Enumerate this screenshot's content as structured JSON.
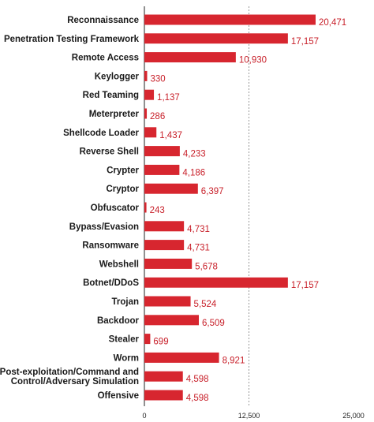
{
  "chart_data": {
    "type": "bar",
    "orientation": "horizontal",
    "bar_color": "#d7262f",
    "value_label_color": "#c8202a",
    "categories": [
      "Reconnaissance",
      "Penetration Testing Framework",
      "Remote Access",
      "Keylogger",
      "Red Teaming",
      "Meterpreter",
      "Shellcode Loader",
      "Reverse Shell",
      "Crypter",
      "Cryptor",
      "Obfuscator",
      "Bypass/Evasion",
      "Ransomware",
      "Webshell",
      "Botnet/DDoS",
      "Trojan",
      "Backdoor",
      "Stealer",
      "Worm",
      "Post-exploitation/Command and Control/Adversary Simulation",
      "Offensive"
    ],
    "category_lines": [
      [
        "Reconnaissance"
      ],
      [
        "Penetration Testing Framework"
      ],
      [
        "Remote Access"
      ],
      [
        "Keylogger"
      ],
      [
        "Red Teaming"
      ],
      [
        "Meterpreter"
      ],
      [
        "Shellcode Loader"
      ],
      [
        "Reverse Shell"
      ],
      [
        "Crypter"
      ],
      [
        "Cryptor"
      ],
      [
        "Obfuscator"
      ],
      [
        "Bypass/Evasion"
      ],
      [
        "Ransomware"
      ],
      [
        "Webshell"
      ],
      [
        "Botnet/DDoS"
      ],
      [
        "Trojan"
      ],
      [
        "Backdoor"
      ],
      [
        "Stealer"
      ],
      [
        "Worm"
      ],
      [
        "Post-exploitation/Command and",
        "Control/Adversary Simulation"
      ],
      [
        "Offensive"
      ]
    ],
    "values": [
      20471,
      17157,
      10930,
      330,
      1137,
      286,
      1437,
      4233,
      4186,
      6397,
      243,
      4731,
      4731,
      5678,
      17157,
      5524,
      6509,
      699,
      8921,
      4598,
      4598
    ],
    "value_labels": [
      "20,471",
      "17,157",
      "10,930",
      "330",
      "1,137",
      "286",
      "1,437",
      "4,233",
      "4,186",
      "6,397",
      "243",
      "4,731",
      "4,731",
      "5,678",
      "17,157",
      "5,524",
      "6,509",
      "699",
      "8,921",
      "4,598",
      "4,598"
    ],
    "xlim": [
      0,
      25000
    ],
    "x_ticks": [
      0,
      12500,
      25000
    ],
    "x_tick_labels": [
      "0",
      "12,500",
      "25,000"
    ],
    "grid": "dashed vertical line at 12,500",
    "title": "",
    "xlabel": "",
    "ylabel": ""
  }
}
